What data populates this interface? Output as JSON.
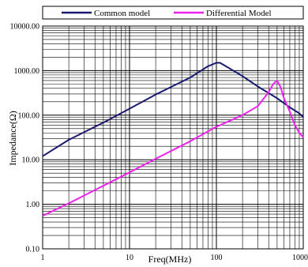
{
  "chart_data": {
    "type": "line",
    "title": "",
    "xlabel": "Freq(MHz)",
    "ylabel": "Impedance(Ω)",
    "x_scale": "log",
    "y_scale": "log",
    "xlim": [
      1,
      1000
    ],
    "ylim": [
      0.1,
      10000
    ],
    "grid": true,
    "legend_position": "top",
    "x_ticks": [
      "1",
      "10",
      "100",
      "1000"
    ],
    "y_ticks": [
      "10000.00",
      "1000.00",
      "100.00",
      "10.00",
      "1.00",
      "0.10"
    ],
    "series": [
      {
        "name": "Common model",
        "color": "#1a1a6e",
        "x": [
          1,
          2,
          5,
          10,
          20,
          50,
          80,
          100,
          110,
          150,
          200,
          300,
          500,
          700,
          900,
          1000
        ],
        "y": [
          12,
          28,
          68,
          140,
          290,
          700,
          1250,
          1500,
          1500,
          1050,
          750,
          440,
          240,
          150,
          110,
          90
        ]
      },
      {
        "name": "Differential Model",
        "color": "#ee22ee",
        "x": [
          1,
          2,
          5,
          10,
          20,
          50,
          100,
          200,
          300,
          400,
          450,
          500,
          550,
          600,
          700,
          800,
          900,
          1000
        ],
        "y": [
          0.55,
          1.05,
          2.6,
          5.2,
          10.5,
          26,
          55,
          100,
          160,
          330,
          500,
          600,
          420,
          240,
          120,
          60,
          40,
          32
        ]
      }
    ]
  }
}
